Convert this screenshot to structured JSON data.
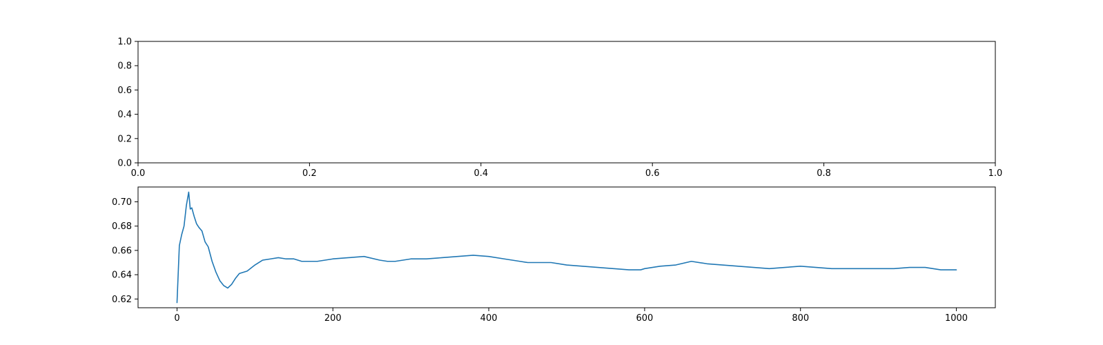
{
  "chart_data": [
    {
      "type": "line",
      "title": "",
      "xlabel": "",
      "ylabel": "",
      "xlim": [
        0.0,
        1.0
      ],
      "ylim": [
        0.0,
        1.0
      ],
      "xticks": [
        "0.0",
        "0.2",
        "0.4",
        "0.6",
        "0.8",
        "1.0"
      ],
      "yticks": [
        "0.0",
        "0.2",
        "0.4",
        "0.6",
        "0.8",
        "1.0"
      ],
      "grid": false,
      "series": []
    },
    {
      "type": "line",
      "title": "",
      "xlabel": "",
      "ylabel": "",
      "xlim": [
        -50,
        1050
      ],
      "ylim": [
        0.6128,
        0.7122
      ],
      "xticks": [
        "0",
        "200",
        "400",
        "600",
        "800",
        "1000"
      ],
      "yticks": [
        "0.62",
        "0.64",
        "0.66",
        "0.68",
        "0.70"
      ],
      "grid": false,
      "color": "#1f77b4",
      "series": [
        {
          "x": [
            0,
            3,
            6,
            9,
            12,
            15,
            17,
            19,
            22,
            25,
            28,
            32,
            36,
            40,
            45,
            50,
            55,
            60,
            65,
            70,
            75,
            80,
            90,
            100,
            110,
            120,
            130,
            140,
            150,
            160,
            170,
            180,
            190,
            200,
            220,
            240,
            260,
            270,
            280,
            300,
            320,
            340,
            360,
            380,
            400,
            420,
            440,
            450,
            460,
            480,
            500,
            520,
            540,
            560,
            580,
            595,
            600,
            620,
            640,
            660,
            680,
            700,
            720,
            740,
            760,
            780,
            800,
            820,
            840,
            860,
            880,
            900,
            920,
            940,
            960,
            980,
            1000
          ],
          "y": [
            0.617,
            0.664,
            0.673,
            0.68,
            0.697,
            0.708,
            0.694,
            0.695,
            0.688,
            0.682,
            0.679,
            0.676,
            0.667,
            0.663,
            0.651,
            0.642,
            0.635,
            0.631,
            0.629,
            0.632,
            0.637,
            0.641,
            0.643,
            0.648,
            0.652,
            0.653,
            0.654,
            0.653,
            0.653,
            0.651,
            0.651,
            0.651,
            0.652,
            0.653,
            0.654,
            0.655,
            0.652,
            0.651,
            0.651,
            0.653,
            0.653,
            0.654,
            0.655,
            0.656,
            0.655,
            0.653,
            0.651,
            0.65,
            0.65,
            0.65,
            0.648,
            0.647,
            0.646,
            0.645,
            0.644,
            0.644,
            0.645,
            0.647,
            0.648,
            0.651,
            0.649,
            0.648,
            0.647,
            0.646,
            0.645,
            0.646,
            0.647,
            0.646,
            0.645,
            0.645,
            0.645,
            0.645,
            0.645,
            0.646,
            0.646,
            0.644,
            0.644
          ]
        }
      ]
    }
  ]
}
